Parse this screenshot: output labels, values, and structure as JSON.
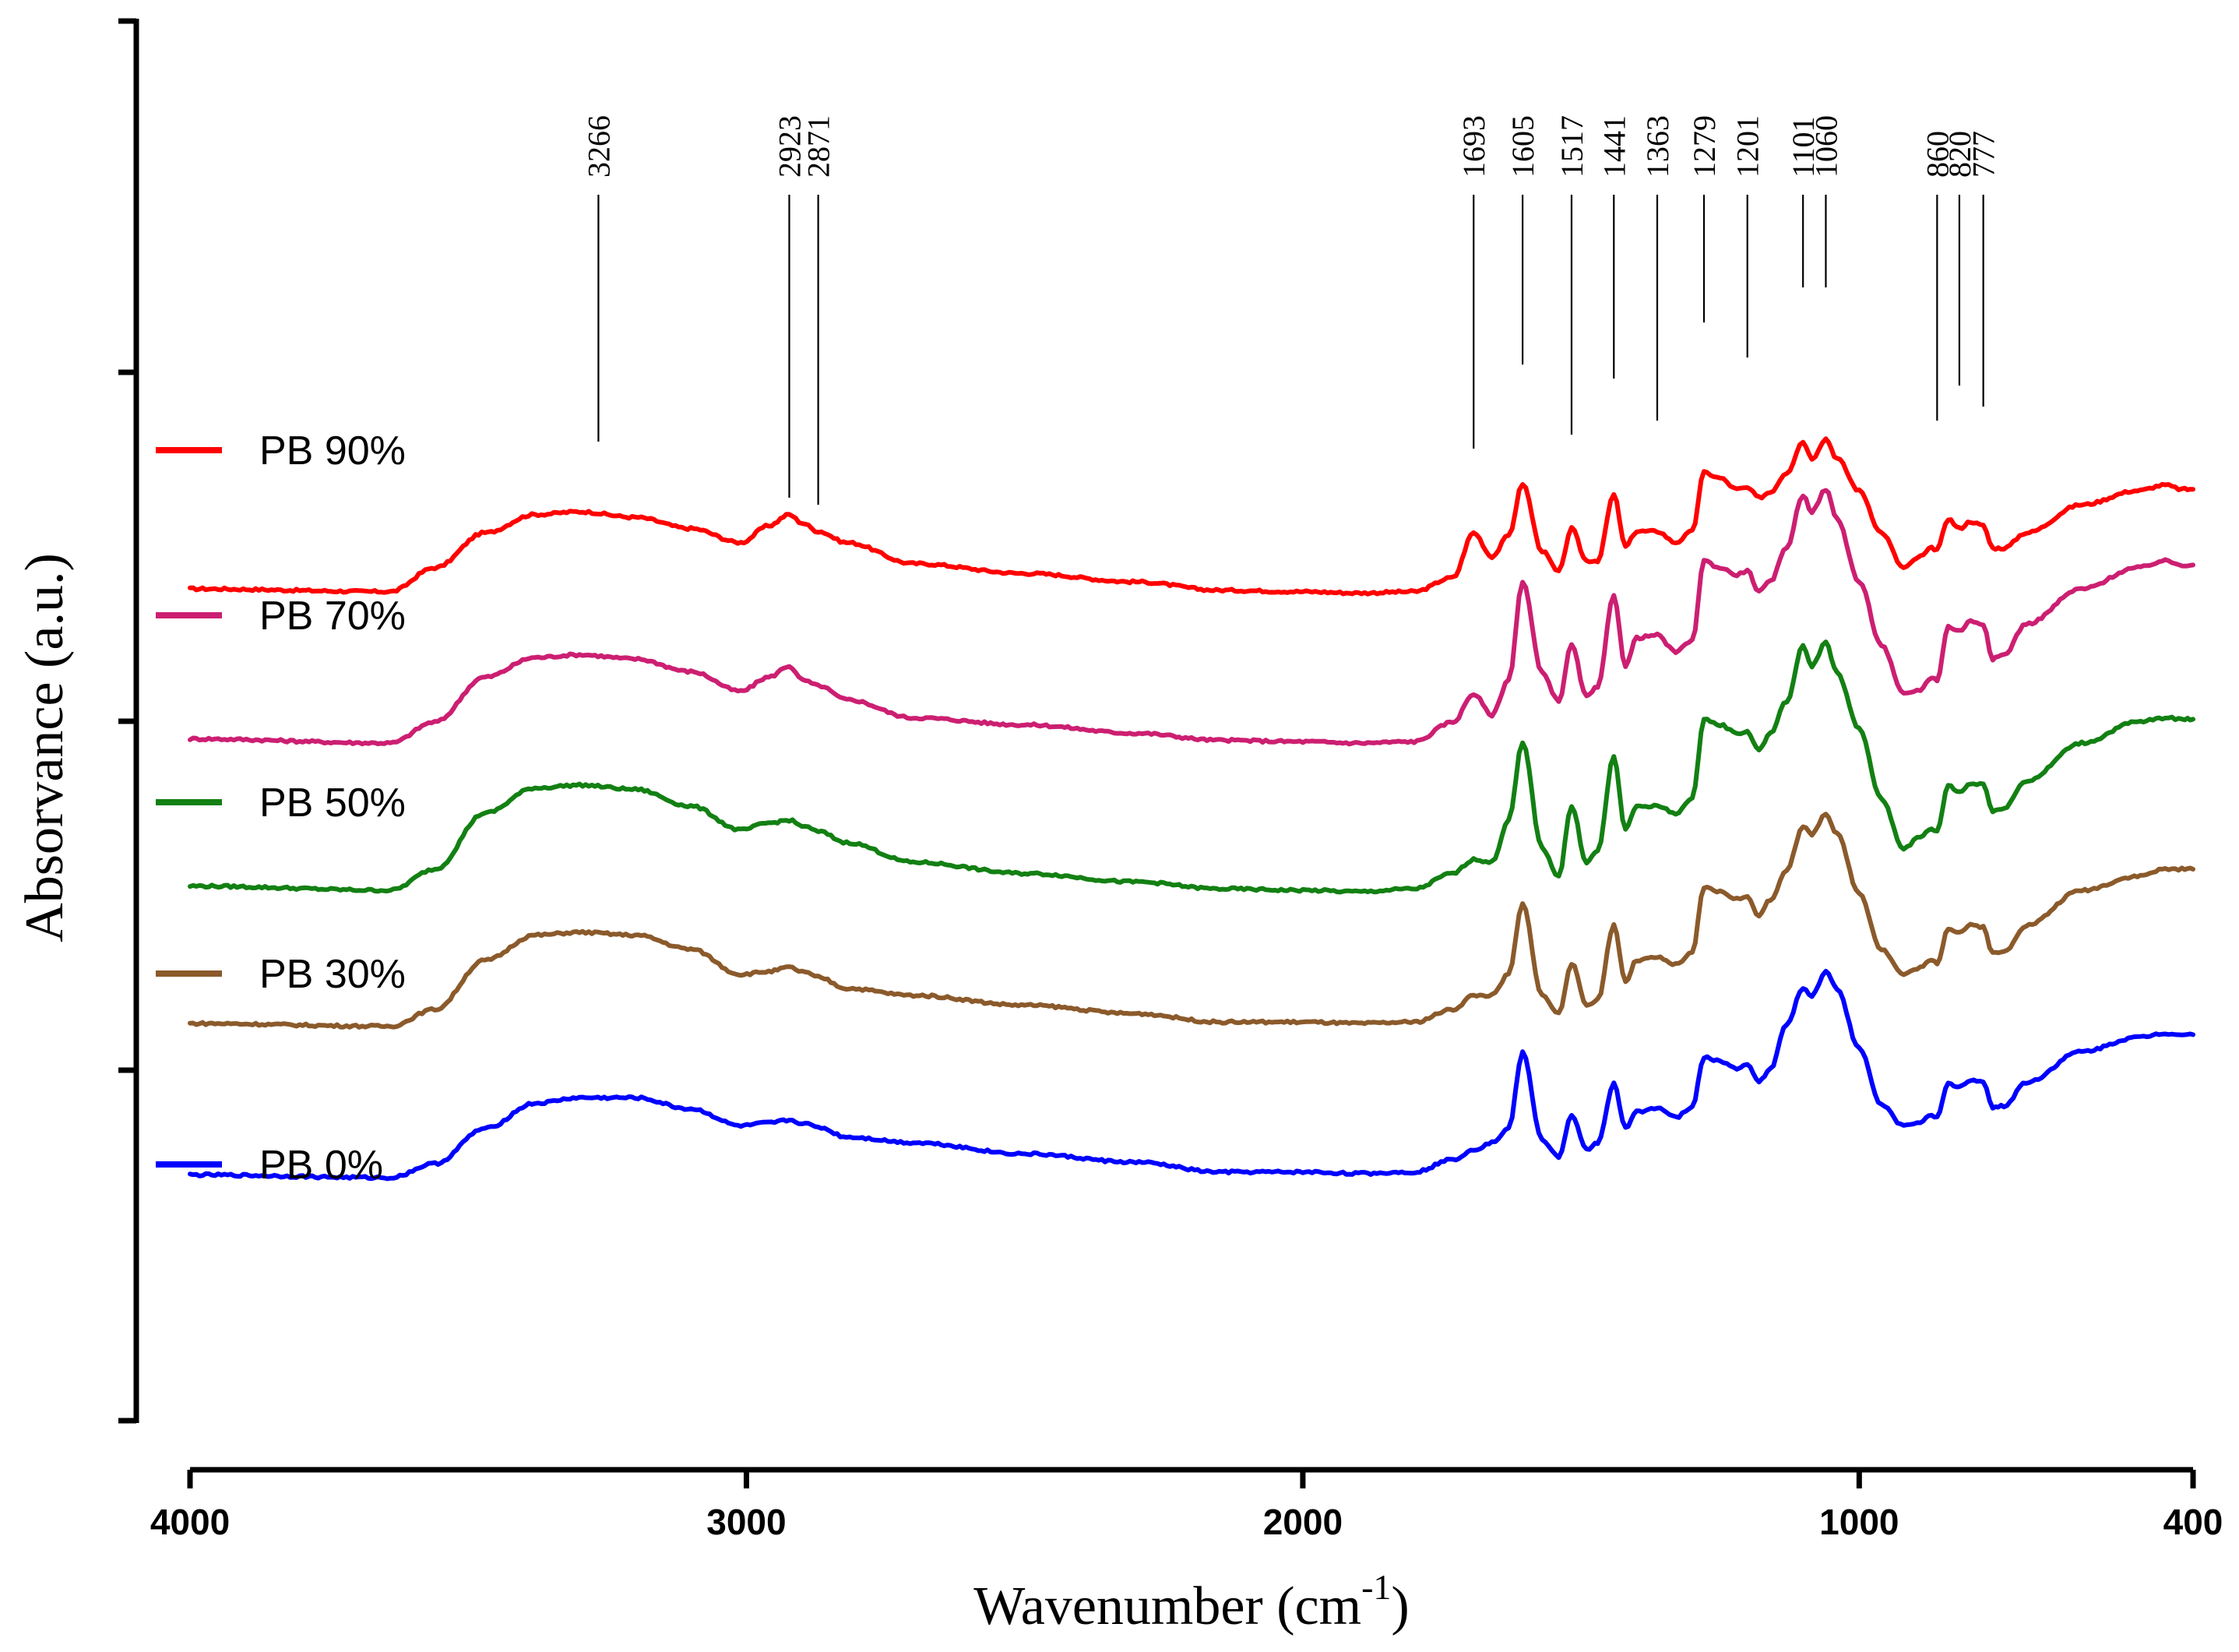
{
  "chart_data": {
    "type": "line",
    "title": "",
    "xlabel_main": "Wavenumber (cm",
    "xlabel_sup": "-1",
    "xlabel_close": ")",
    "ylabel": "Absorvance (a.u.)",
    "xlim": [
      4000,
      400
    ],
    "ylim": [
      0,
      100
    ],
    "x_ticks": [
      4000,
      3000,
      2000,
      1000,
      400
    ],
    "x_tick_labels": [
      "4000",
      "3000",
      "2000",
      "1000",
      "400"
    ],
    "grid": false,
    "legend_position": "left",
    "peak_annotations": [
      {
        "label": "3266",
        "x": 3266,
        "line_bottom": 70
      },
      {
        "label": "2923",
        "x": 2923,
        "line_bottom": 66
      },
      {
        "label": "2871",
        "x": 2871,
        "line_bottom": 65.5
      },
      {
        "label": "1693",
        "x": 1693,
        "line_bottom": 69.5
      },
      {
        "label": "1605",
        "x": 1605,
        "line_bottom": 75.5
      },
      {
        "label": "1517",
        "x": 1517,
        "line_bottom": 70.5
      },
      {
        "label": "1441",
        "x": 1441,
        "line_bottom": 74.5
      },
      {
        "label": "1363",
        "x": 1363,
        "line_bottom": 71.5
      },
      {
        "label": "1279",
        "x": 1279,
        "line_bottom": 78.5
      },
      {
        "label": "1201",
        "x": 1201,
        "line_bottom": 76
      },
      {
        "label": "1101",
        "x": 1101,
        "line_bottom": 81
      },
      {
        "label": "1060",
        "x": 1060,
        "line_bottom": 81
      },
      {
        "label": "860",
        "x": 860,
        "line_bottom": 71.5
      },
      {
        "label": "820",
        "x": 820,
        "line_bottom": 74
      },
      {
        "label": "777",
        "x": 777,
        "line_bottom": 72.5
      }
    ],
    "series": [
      {
        "name": "PB 90%",
        "color": "#ff0000",
        "offset": 59,
        "x": [
          4000,
          3640,
          3560,
          3470,
          3380,
          3300,
          3200,
          3100,
          3010,
          2960,
          2923,
          2900,
          2871,
          2820,
          2700,
          2500,
          2300,
          2150,
          2000,
          1900,
          1800,
          1730,
          1693,
          1660,
          1630,
          1605,
          1570,
          1540,
          1517,
          1490,
          1470,
          1441,
          1420,
          1400,
          1363,
          1330,
          1300,
          1279,
          1250,
          1220,
          1201,
          1180,
          1160,
          1130,
          1101,
          1085,
          1060,
          1040,
          1000,
          960,
          920,
          890,
          870,
          860,
          840,
          820,
          800,
          777,
          760,
          740,
          700,
          600,
          500,
          450,
          420,
          400
        ],
        "y": [
          59.5,
          59.3,
          61.0,
          63.5,
          64.8,
          65.0,
          64.6,
          63.8,
          62.8,
          64.0,
          64.8,
          64.2,
          63.6,
          62.8,
          61.3,
          60.6,
          60.0,
          59.4,
          59.3,
          59.2,
          59.3,
          60.3,
          63.5,
          61.8,
          63.3,
          67.0,
          62.2,
          60.7,
          63.8,
          61.5,
          61.5,
          66.2,
          62.5,
          63.6,
          63.6,
          62.8,
          63.6,
          67.8,
          67.4,
          66.6,
          66.7,
          66.0,
          66.4,
          67.8,
          70.0,
          68.8,
          70.2,
          68.8,
          66.5,
          63.5,
          61.0,
          61.8,
          62.4,
          62.3,
          64.5,
          63.8,
          64.3,
          64.0,
          62.4,
          62.4,
          63.5,
          65.5,
          66.5,
          66.9,
          66.6,
          66.6
        ]
      },
      {
        "name": "PB 70%",
        "color": "#cc1f72",
        "offset": 48,
        "x": [
          4000,
          3640,
          3560,
          3470,
          3380,
          3300,
          3200,
          3100,
          3010,
          2960,
          2923,
          2900,
          2871,
          2820,
          2700,
          2500,
          2300,
          2150,
          2000,
          1900,
          1800,
          1730,
          1693,
          1660,
          1630,
          1605,
          1570,
          1540,
          1517,
          1490,
          1470,
          1441,
          1420,
          1400,
          1363,
          1330,
          1300,
          1279,
          1250,
          1220,
          1201,
          1180,
          1160,
          1130,
          1101,
          1085,
          1060,
          1040,
          1000,
          960,
          920,
          890,
          870,
          860,
          840,
          820,
          800,
          777,
          760,
          740,
          700,
          600,
          500,
          450,
          420,
          400
        ],
        "y": [
          48.8,
          48.5,
          50.0,
          53.2,
          54.6,
          54.8,
          54.5,
          53.6,
          52.2,
          53.2,
          54.0,
          53.0,
          52.6,
          51.6,
          50.3,
          49.8,
          49.2,
          48.7,
          48.6,
          48.5,
          48.6,
          50.0,
          52.0,
          50.5,
          53.0,
          60.0,
          53.5,
          51.5,
          55.5,
          51.8,
          52.5,
          59.0,
          54.0,
          56.0,
          56.2,
          55.0,
          55.8,
          61.5,
          61.0,
          60.5,
          60.8,
          59.3,
          60.0,
          62.5,
          66.2,
          65.0,
          66.6,
          64.5,
          60.0,
          55.5,
          52.0,
          52.3,
          53.2,
          53.0,
          56.8,
          56.5,
          57.2,
          57.0,
          54.5,
          54.8,
          57.0,
          59.5,
          61.0,
          61.5,
          61.2,
          61.2
        ]
      },
      {
        "name": "PB 50%",
        "color": "#138013",
        "offset": 38,
        "x": [
          4000,
          3640,
          3560,
          3470,
          3380,
          3300,
          3200,
          3100,
          3010,
          2960,
          2923,
          2900,
          2871,
          2820,
          2700,
          2500,
          2300,
          2150,
          2000,
          1900,
          1800,
          1730,
          1693,
          1660,
          1630,
          1605,
          1570,
          1540,
          1517,
          1490,
          1470,
          1441,
          1420,
          1400,
          1363,
          1330,
          1300,
          1279,
          1250,
          1220,
          1201,
          1180,
          1160,
          1130,
          1101,
          1085,
          1060,
          1040,
          1000,
          960,
          920,
          890,
          870,
          860,
          840,
          820,
          800,
          777,
          760,
          740,
          700,
          600,
          500,
          450,
          420,
          400
        ],
        "y": [
          38.3,
          38.0,
          39.5,
          43.5,
          45.3,
          45.5,
          45.2,
          44.0,
          42.3,
          42.8,
          43.0,
          42.6,
          42.2,
          41.4,
          40.0,
          39.2,
          38.6,
          38.1,
          38.0,
          37.9,
          38.1,
          39.2,
          40.2,
          40.0,
          43.0,
          48.5,
          41.0,
          39.0,
          44.0,
          40.0,
          40.8,
          47.5,
          42.3,
          44.0,
          44.0,
          43.5,
          44.5,
          50.2,
          49.8,
          49.2,
          49.3,
          48.0,
          49.2,
          51.5,
          55.4,
          54.0,
          55.7,
          53.5,
          49.5,
          44.5,
          41.0,
          41.8,
          42.4,
          42.2,
          45.5,
          45.0,
          45.6,
          45.6,
          43.6,
          43.9,
          45.8,
          48.5,
          50.0,
          50.3,
          50.2,
          50.2
        ]
      },
      {
        "name": "PB 30%",
        "color": "#8b5a2b",
        "offset": 28,
        "x": [
          4000,
          3640,
          3560,
          3470,
          3380,
          3300,
          3200,
          3100,
          3010,
          2960,
          2923,
          2900,
          2871,
          2820,
          2700,
          2500,
          2300,
          2150,
          2000,
          1900,
          1800,
          1730,
          1693,
          1660,
          1630,
          1605,
          1570,
          1540,
          1517,
          1490,
          1470,
          1441,
          1420,
          1400,
          1363,
          1330,
          1300,
          1279,
          1250,
          1220,
          1201,
          1180,
          1160,
          1130,
          1101,
          1085,
          1060,
          1040,
          1000,
          960,
          920,
          890,
          870,
          860,
          840,
          820,
          800,
          777,
          760,
          740,
          700,
          600,
          500,
          450,
          420,
          400
        ],
        "y": [
          28.5,
          28.3,
          29.5,
          33.0,
          34.8,
          35.0,
          34.8,
          33.8,
          32.0,
          32.2,
          32.5,
          32.2,
          31.8,
          31.0,
          30.5,
          29.8,
          29.2,
          28.6,
          28.6,
          28.5,
          28.6,
          29.5,
          30.5,
          30.5,
          32.0,
          37.0,
          30.5,
          29.2,
          32.8,
          29.8,
          30.2,
          35.5,
          31.5,
          33.0,
          33.2,
          32.7,
          33.5,
          38.2,
          37.9,
          37.4,
          37.5,
          36.2,
          37.3,
          39.5,
          42.5,
          42.0,
          43.5,
          42.0,
          37.8,
          33.8,
          32.0,
          32.5,
          33.0,
          32.8,
          35.3,
          35.0,
          35.5,
          35.4,
          33.5,
          33.6,
          35.5,
          38.0,
          39.0,
          39.5,
          39.5,
          39.5
        ]
      },
      {
        "name": "PB 0%",
        "color": "#0000ff",
        "offset": 17,
        "x": [
          4000,
          3640,
          3560,
          3470,
          3380,
          3300,
          3200,
          3100,
          3010,
          2960,
          2923,
          2900,
          2871,
          2820,
          2700,
          2500,
          2300,
          2150,
          2000,
          1900,
          1800,
          1730,
          1693,
          1660,
          1630,
          1605,
          1570,
          1540,
          1517,
          1490,
          1470,
          1441,
          1420,
          1400,
          1363,
          1330,
          1300,
          1279,
          1250,
          1220,
          1201,
          1180,
          1160,
          1130,
          1101,
          1085,
          1060,
          1040,
          1000,
          960,
          920,
          890,
          870,
          860,
          840,
          820,
          800,
          777,
          760,
          740,
          700,
          600,
          500,
          450,
          420,
          400
        ],
        "y": [
          17.7,
          17.5,
          18.5,
          21.0,
          22.8,
          23.2,
          23.2,
          22.4,
          21.2,
          21.4,
          21.6,
          21.4,
          21.1,
          20.4,
          20.0,
          19.2,
          18.6,
          17.9,
          17.9,
          17.8,
          17.9,
          18.8,
          19.5,
          20.0,
          21.0,
          26.4,
          20.2,
          19.0,
          21.9,
          19.5,
          20.0,
          24.2,
          21.0,
          22.2,
          22.5,
          21.8,
          22.5,
          26.1,
          25.8,
          25.3,
          25.5,
          24.4,
          25.2,
          28.5,
          31.0,
          30.5,
          32.2,
          31.0,
          26.7,
          22.7,
          21.2,
          21.5,
          21.9,
          21.8,
          24.2,
          24.0,
          24.4,
          24.4,
          22.5,
          22.6,
          24.3,
          26.5,
          27.5,
          27.8,
          27.7,
          27.7
        ]
      }
    ]
  },
  "legend": {
    "items": [
      {
        "label": "PB 90%",
        "color": "#ff0000"
      },
      {
        "label": "PB 70%",
        "color": "#cc1f72"
      },
      {
        "label": "PB 50%",
        "color": "#138013"
      },
      {
        "label": "PB 30%",
        "color": "#8b5a2b"
      },
      {
        "label": "PB 0%",
        "color": "#0000ff"
      }
    ]
  }
}
